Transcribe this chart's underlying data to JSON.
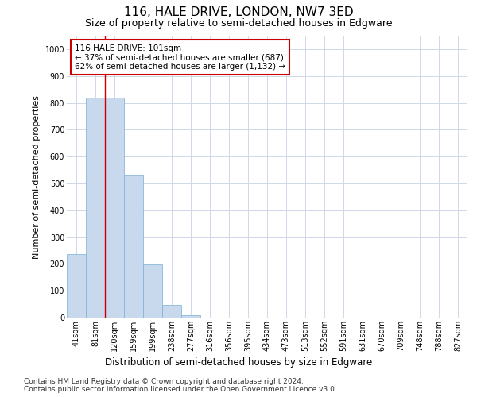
{
  "title": "116, HALE DRIVE, LONDON, NW7 3ED",
  "subtitle": "Size of property relative to semi-detached houses in Edgware",
  "xlabel": "Distribution of semi-detached houses by size in Edgware",
  "ylabel": "Number of semi-detached properties",
  "categories": [
    "41sqm",
    "81sqm",
    "120sqm",
    "159sqm",
    "199sqm",
    "238sqm",
    "277sqm",
    "316sqm",
    "356sqm",
    "395sqm",
    "434sqm",
    "473sqm",
    "513sqm",
    "552sqm",
    "591sqm",
    "631sqm",
    "670sqm",
    "709sqm",
    "748sqm",
    "788sqm",
    "827sqm"
  ],
  "values": [
    237,
    820,
    820,
    530,
    197,
    46,
    10,
    0,
    0,
    0,
    0,
    0,
    0,
    0,
    0,
    0,
    0,
    0,
    0,
    0,
    0
  ],
  "bar_color": "#c8d9ee",
  "bar_edge_color": "#7aafd4",
  "grid_color": "#d0d8e8",
  "property_line_x": 1.5,
  "annotation_text": "116 HALE DRIVE: 101sqm\n← 37% of semi-detached houses are smaller (687)\n62% of semi-detached houses are larger (1,132) →",
  "annotation_box_color": "#ffffff",
  "annotation_box_edge": "#cc0000",
  "property_line_color": "#cc0000",
  "ylim": [
    0,
    1050
  ],
  "yticks": [
    0,
    100,
    200,
    300,
    400,
    500,
    600,
    700,
    800,
    900,
    1000
  ],
  "footer_line1": "Contains HM Land Registry data © Crown copyright and database right 2024.",
  "footer_line2": "Contains public sector information licensed under the Open Government Licence v3.0.",
  "background_color": "#ffffff",
  "title_fontsize": 11,
  "subtitle_fontsize": 9,
  "annotation_fontsize": 7.5,
  "ylabel_fontsize": 8,
  "xlabel_fontsize": 8.5,
  "footer_fontsize": 6.5,
  "tick_fontsize": 7
}
